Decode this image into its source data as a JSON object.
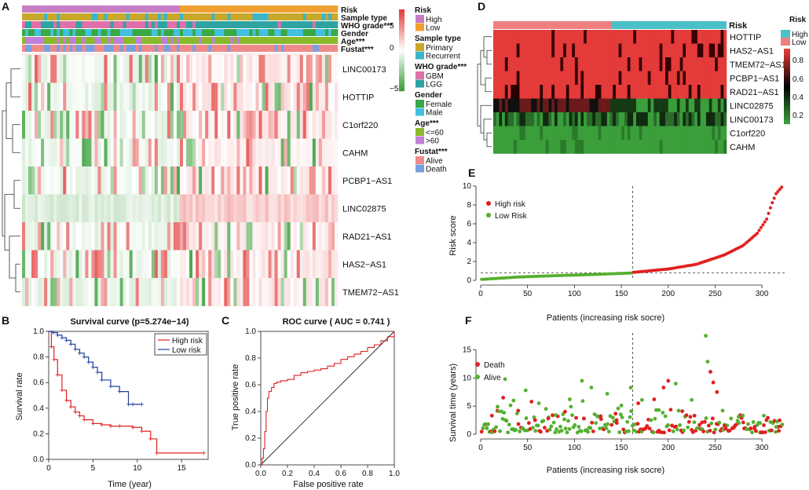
{
  "panels": {
    "A": "A",
    "B": "B",
    "C": "C",
    "D": "D",
    "E": "E",
    "F": "F"
  },
  "colors": {
    "high": "#c77cc4",
    "low": "#f0a030",
    "primary": "#c8a82b",
    "recurrent": "#3bb6c8",
    "gbm": "#e070a8",
    "lgg": "#2fa3a3",
    "female": "#3aa844",
    "male": "#42c0e0",
    "le60": "#8aba2a",
    "gt60": "#c080d8",
    "alive": "#f08a8a",
    "death": "#78a0e0",
    "heat_red": "#e43a3a",
    "heat_green": "#3a9e3a",
    "risk_high_d": "#4bc0c8",
    "risk_low_d": "#f08080",
    "surv_high": "#e02020",
    "surv_low": "#1f3f9f",
    "pt_red": "#e02020",
    "pt_green": "#55b030"
  },
  "panel_a": {
    "annotations": [
      "Risk",
      "Sample type",
      "WHO grade***",
      "Gender",
      "Age***",
      "Fustat***"
    ],
    "genes": [
      "LINC00173",
      "HOTTIP",
      "C1orf220",
      "CAHM",
      "PCBP1−AS1",
      "LINC02875",
      "RAD21−AS1",
      "HAS2−AS1",
      "TMEM72−AS1"
    ],
    "color_scale_ticks": [
      "5",
      "0",
      "−5"
    ],
    "legend": [
      {
        "title": "Risk",
        "items": [
          "High",
          "Low"
        ]
      },
      {
        "title": "Sample type",
        "items": [
          "Primary",
          "Recurrent"
        ]
      },
      {
        "title": "WHO grade***",
        "items": [
          "GBM",
          "LGG"
        ]
      },
      {
        "title": "Gender",
        "items": [
          "Female",
          "Male"
        ]
      },
      {
        "title": "Age***",
        "items": [
          "<=60",
          ">60"
        ]
      },
      {
        "title": "Fustat***",
        "items": [
          "Alive",
          "Death"
        ]
      }
    ]
  },
  "panel_d": {
    "annotation": "Risk",
    "genes": [
      "HOTTIP",
      "HAS2−AS1",
      "TMEM72−AS1",
      "PCBP1−AS1",
      "RAD21−AS1",
      "LINC02875",
      "LINC00173",
      "C1orf220",
      "CAHM"
    ],
    "legend_title": "Risk",
    "legend_items": [
      "High",
      "Low"
    ],
    "scale_ticks": [
      "0.8",
      "0.6",
      "0.4",
      "0.2"
    ]
  },
  "chart_data": [
    {
      "panel": "B",
      "type": "line",
      "title": "Survival curve (p=5.274e−14)",
      "xlabel": "Time (year)",
      "ylabel": "Survival rate",
      "xlim": [
        0,
        18
      ],
      "ylim": [
        0,
        1
      ],
      "xticks": [
        "0",
        "5",
        "10",
        "15"
      ],
      "yticks": [
        "0.0",
        "0.2",
        "0.4",
        "0.6",
        "0.8",
        "1.0"
      ],
      "legend": [
        "High risk",
        "Low risk"
      ],
      "series": [
        {
          "name": "High risk",
          "x": [
            0,
            0.3,
            0.6,
            1.0,
            1.5,
            2.0,
            2.5,
            3.0,
            3.5,
            4.0,
            5.0,
            6.0,
            7.0,
            8.0,
            9.5,
            10.5,
            11.5,
            12.2,
            17.5
          ],
          "y": [
            1.0,
            0.88,
            0.78,
            0.66,
            0.54,
            0.46,
            0.41,
            0.37,
            0.34,
            0.31,
            0.28,
            0.27,
            0.26,
            0.26,
            0.25,
            0.22,
            0.16,
            0.05,
            0.05
          ]
        },
        {
          "name": "Low risk",
          "x": [
            0,
            0.5,
            1.0,
            1.5,
            2.0,
            2.5,
            3.0,
            3.5,
            4.0,
            4.5,
            5.0,
            5.5,
            6.0,
            7.0,
            8.0,
            9.0,
            9.5,
            10.5
          ],
          "y": [
            1.0,
            0.99,
            0.97,
            0.95,
            0.93,
            0.9,
            0.86,
            0.83,
            0.8,
            0.76,
            0.72,
            0.68,
            0.62,
            0.57,
            0.53,
            0.43,
            0.43,
            0.43
          ]
        }
      ]
    },
    {
      "panel": "C",
      "type": "line",
      "title": "ROC curve ( AUC =  0.741 )",
      "xlabel": "False positive rate",
      "ylabel": "True positive rate",
      "xlim": [
        0,
        1
      ],
      "ylim": [
        0,
        1
      ],
      "xticks": [
        "0.0",
        "0.2",
        "0.4",
        "0.6",
        "0.8",
        "1.0"
      ],
      "yticks": [
        "0.0",
        "0.2",
        "0.4",
        "0.6",
        "0.8",
        "1.0"
      ],
      "series": [
        {
          "name": "ROC",
          "x": [
            0,
            0.01,
            0.02,
            0.03,
            0.04,
            0.05,
            0.06,
            0.08,
            0.1,
            0.12,
            0.15,
            0.2,
            0.25,
            0.3,
            0.35,
            0.4,
            0.45,
            0.5,
            0.55,
            0.6,
            0.65,
            0.7,
            0.75,
            0.8,
            0.85,
            0.9,
            0.95,
            1.0
          ],
          "y": [
            0,
            0.05,
            0.12,
            0.25,
            0.4,
            0.5,
            0.55,
            0.58,
            0.61,
            0.62,
            0.63,
            0.64,
            0.67,
            0.69,
            0.7,
            0.71,
            0.72,
            0.74,
            0.76,
            0.79,
            0.81,
            0.83,
            0.85,
            0.88,
            0.9,
            0.93,
            0.96,
            1.0
          ]
        }
      ]
    },
    {
      "panel": "E",
      "type": "scatter",
      "xlabel": "Patients (increasing risk socre)",
      "ylabel": "Risk score",
      "xlim": [
        0,
        325
      ],
      "ylim": [
        0,
        10
      ],
      "xticks": [
        "0",
        "50",
        "100",
        "150",
        "200",
        "250",
        "300"
      ],
      "yticks": [
        "0",
        "2",
        "4",
        "6",
        "8",
        "10"
      ],
      "cutoff_index": 162,
      "cutoff_score": 0.8,
      "legend": [
        "High risk",
        "Low Risk"
      ],
      "series": [
        {
          "name": "Low Risk",
          "x": [
            1,
            40,
            80,
            120,
            161
          ],
          "y": [
            0.1,
            0.35,
            0.5,
            0.62,
            0.78
          ]
        },
        {
          "name": "High risk",
          "x": [
            163,
            200,
            230,
            260,
            280,
            295,
            305,
            310,
            315,
            322
          ],
          "y": [
            0.85,
            1.2,
            1.7,
            2.7,
            3.7,
            5.0,
            6.5,
            8.0,
            9.2,
            10.0
          ]
        }
      ]
    },
    {
      "panel": "F",
      "type": "scatter",
      "xlabel": "Patients (increasing risk socre)",
      "ylabel": "Survival time (years)",
      "xlim": [
        0,
        325
      ],
      "ylim": [
        0,
        18
      ],
      "xticks": [
        "0",
        "50",
        "100",
        "150",
        "200",
        "250",
        "300"
      ],
      "yticks": [
        "0",
        "5",
        "10",
        "15"
      ],
      "cutoff_index": 162,
      "legend": [
        "Death",
        "Alive"
      ],
      "series": [
        {
          "name": "Death",
          "points": [
            [
              12,
              3.3
            ],
            [
              24,
              6.5
            ],
            [
              40,
              4.2
            ],
            [
              58,
              2.5
            ],
            [
              72,
              2.8
            ],
            [
              90,
              4.0
            ],
            [
              110,
              2.8
            ],
            [
              128,
              3.2
            ],
            [
              145,
              2.5
            ],
            [
              168,
              5.5
            ],
            [
              185,
              6.2
            ],
            [
              195,
              8.3
            ],
            [
              200,
              9.5
            ],
            [
              215,
              4.1
            ],
            [
              228,
              3.3
            ],
            [
              236,
              2.1
            ],
            [
              245,
              11.1
            ],
            [
              248,
              9.2
            ],
            [
              252,
              7.5
            ],
            [
              260,
              1.5
            ],
            [
              270,
              1.2
            ],
            [
              280,
              2.1
            ],
            [
              292,
              1.0
            ],
            [
              302,
              1.6
            ],
            [
              310,
              0.7
            ],
            [
              318,
              0.6
            ]
          ]
        },
        {
          "name": "Alive",
          "points": [
            [
              5,
              1.8
            ],
            [
              18,
              4.9
            ],
            [
              26,
              9.8
            ],
            [
              35,
              6.0
            ],
            [
              48,
              7.8
            ],
            [
              62,
              5.5
            ],
            [
              80,
              3.4
            ],
            [
              95,
              6.2
            ],
            [
              108,
              9.5
            ],
            [
              118,
              8.3
            ],
            [
              135,
              7.2
            ],
            [
              150,
              5.1
            ],
            [
              160,
              8.3
            ],
            [
              172,
              6.1
            ],
            [
              190,
              4.3
            ],
            [
              208,
              9.0
            ],
            [
              225,
              6.1
            ],
            [
              240,
              17.5
            ],
            [
              242,
              12.9
            ],
            [
              258,
              4.2
            ],
            [
              275,
              3.1
            ],
            [
              298,
              2.0
            ],
            [
              315,
              1.3
            ]
          ]
        }
      ]
    }
  ]
}
